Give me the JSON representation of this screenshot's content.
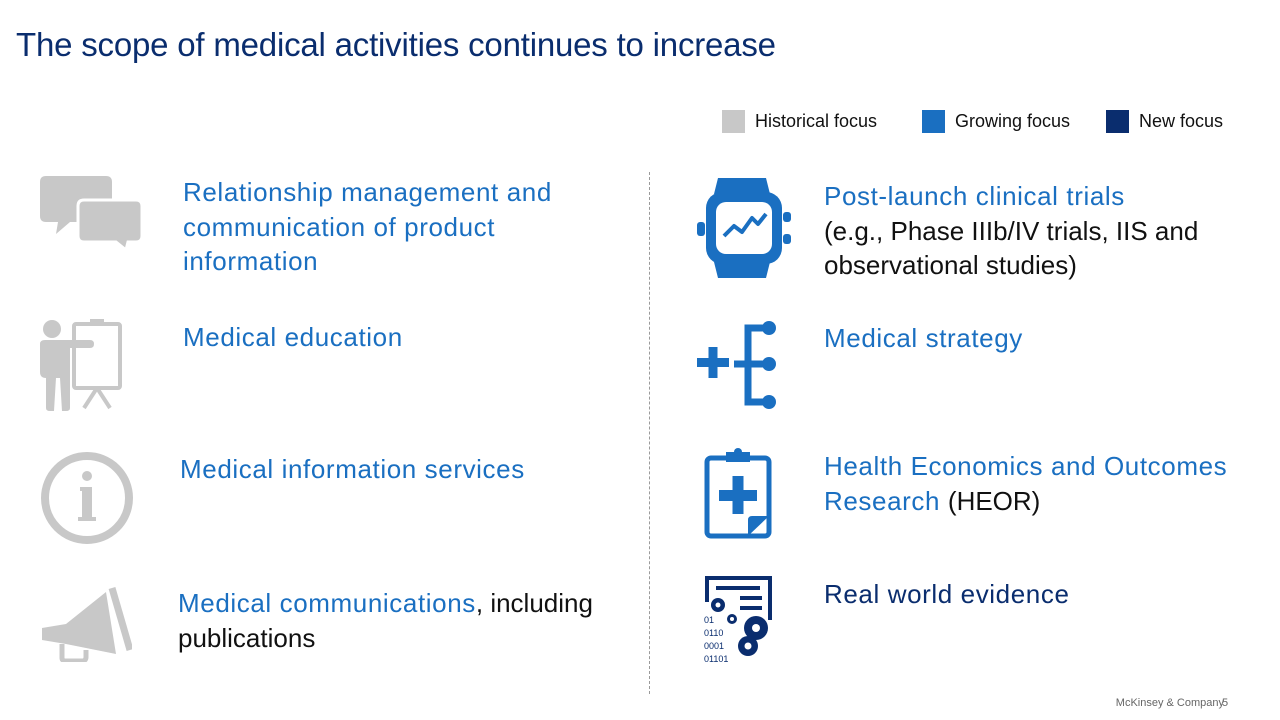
{
  "slide": {
    "title": "The scope of medical activities continues to increase",
    "footer": "McKinsey & Company",
    "page_number": "5"
  },
  "legend": [
    {
      "label": "Historical focus",
      "color": "#c8c8c8"
    },
    {
      "label": "Growing focus",
      "color": "#1a6fc1"
    },
    {
      "label": "New focus",
      "color": "#0a2d6e"
    }
  ],
  "colors": {
    "historical": "#c8c8c8",
    "growing": "#1a6fc1",
    "new": "#0a2d6e",
    "text": "#111111"
  },
  "left_items": [
    {
      "icon": "chat-bubbles-icon",
      "focus": "historical",
      "highlight": "Relationship management and communication of product information",
      "rest": ""
    },
    {
      "icon": "presenter-board-icon",
      "focus": "historical",
      "highlight": "Medical education",
      "rest": ""
    },
    {
      "icon": "info-circle-icon",
      "focus": "historical",
      "highlight": "Medical information services",
      "rest": ""
    },
    {
      "icon": "megaphone-icon",
      "focus": "historical",
      "highlight": "Medical communications",
      "rest": ", including publications"
    }
  ],
  "right_items": [
    {
      "icon": "smartwatch-chart-icon",
      "focus": "growing",
      "highlight": "Post-launch clinical trials",
      "rest": "(e.g., Phase IIIb/IV trials, IIS and observational studies)"
    },
    {
      "icon": "plus-branch-icon",
      "focus": "growing",
      "highlight": "Medical strategy",
      "rest": ""
    },
    {
      "icon": "clipboard-plus-icon",
      "focus": "growing",
      "highlight": "Health Economics and Outcomes Research",
      "rest": "(HEOR)"
    },
    {
      "icon": "data-gears-icon",
      "focus": "new",
      "highlight": "Real world evidence",
      "rest": ""
    }
  ]
}
